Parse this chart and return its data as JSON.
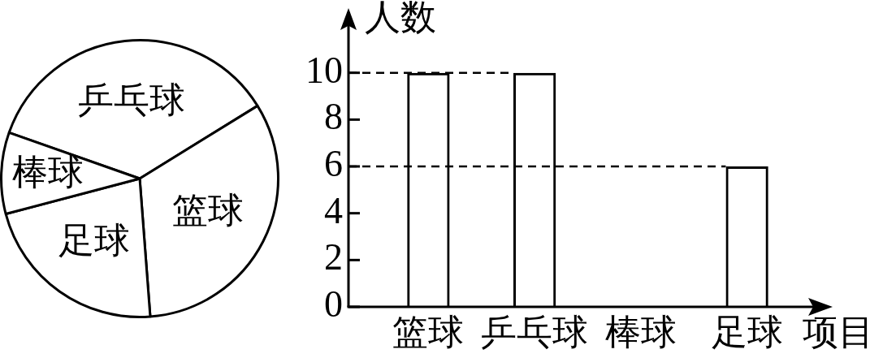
{
  "chart_data": [
    {
      "type": "pie",
      "categories": [
        "乒乓球",
        "篮球",
        "足球",
        "棒球"
      ],
      "values": [
        35.8,
        32.6,
        22.1,
        9.5
      ],
      "colors": [
        "#ffffff",
        "#ffffff",
        "#ffffff",
        "#ffffff"
      ]
    },
    {
      "type": "bar",
      "categories": [
        "篮球",
        "乒乓球",
        "棒球",
        "足球"
      ],
      "values": [
        10,
        10,
        null,
        6
      ],
      "color": "#000000",
      "xlabel": "项目",
      "ylabel": "人数",
      "ylim": [
        0,
        12
      ],
      "yticks": [
        0,
        2,
        4,
        6,
        8,
        10
      ],
      "ref_lines": [
        {
          "axis": "y",
          "value": 10,
          "line_style": "dashed"
        },
        {
          "axis": "y",
          "value": 6,
          "line_style": "dashed"
        }
      ]
    }
  ]
}
